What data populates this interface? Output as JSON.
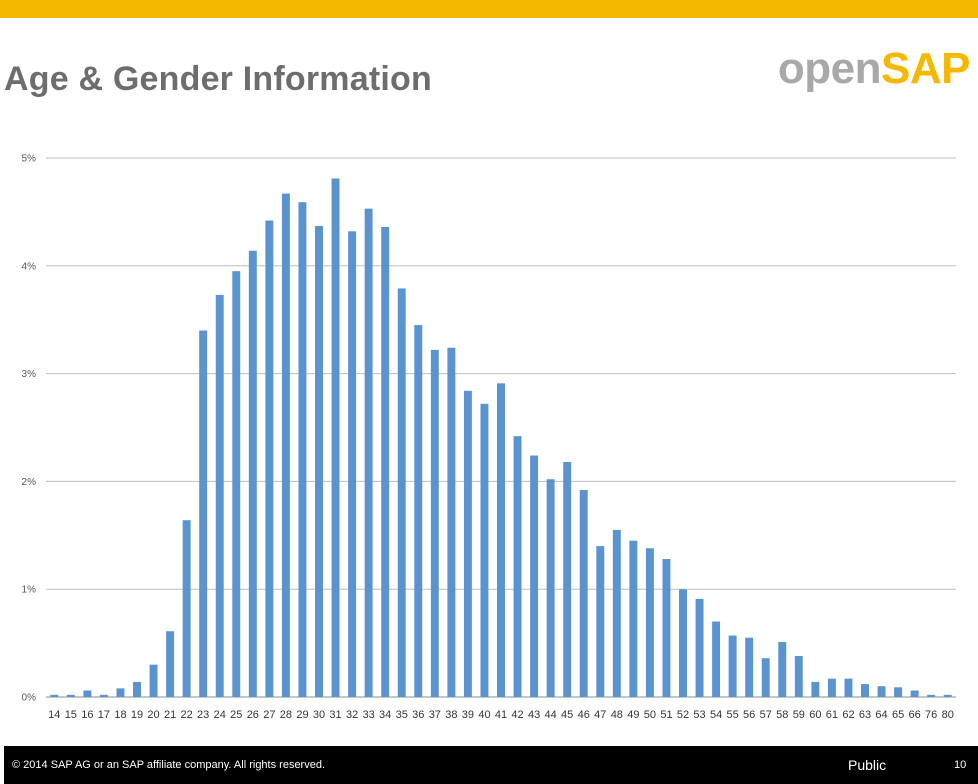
{
  "slide": {
    "title": "Age & Gender Information",
    "logo_open": "open",
    "logo_sap": "SAP",
    "colors": {
      "accent": "#f5b800",
      "bar": "#5b93cf",
      "title": "#6d6d6d"
    }
  },
  "footer": {
    "copyright": "© 2014 SAP AG or an SAP affiliate company. All rights reserved.",
    "classification": "Public",
    "page_number": "10"
  },
  "chart_data": {
    "type": "bar",
    "categories": [
      "14",
      "15",
      "16",
      "17",
      "18",
      "19",
      "20",
      "21",
      "22",
      "23",
      "24",
      "25",
      "26",
      "27",
      "28",
      "29",
      "30",
      "31",
      "32",
      "33",
      "34",
      "35",
      "36",
      "37",
      "38",
      "39",
      "40",
      "41",
      "42",
      "43",
      "44",
      "45",
      "46",
      "47",
      "48",
      "49",
      "50",
      "51",
      "52",
      "53",
      "54",
      "55",
      "56",
      "57",
      "58",
      "59",
      "60",
      "61",
      "62",
      "63",
      "64",
      "65",
      "66",
      "76",
      "80"
    ],
    "values": [
      0.02,
      0.02,
      0.06,
      0.02,
      0.08,
      0.14,
      0.3,
      0.61,
      1.64,
      3.4,
      3.73,
      3.95,
      4.14,
      4.42,
      4.67,
      4.59,
      4.37,
      4.81,
      4.32,
      4.53,
      4.36,
      3.79,
      3.45,
      3.22,
      3.24,
      2.84,
      2.72,
      2.91,
      2.42,
      2.24,
      2.02,
      2.18,
      1.92,
      1.4,
      1.55,
      1.45,
      1.38,
      1.28,
      1.0,
      0.91,
      0.7,
      0.57,
      0.55,
      0.36,
      0.51,
      0.38,
      0.14,
      0.17,
      0.17,
      0.12,
      0.1,
      0.09,
      0.06,
      0.02,
      0.02
    ],
    "y_ticks": [
      "0%",
      "1%",
      "2%",
      "3%",
      "4%",
      "5%"
    ],
    "ylim": [
      0,
      5
    ],
    "grid": true,
    "legend": false
  }
}
